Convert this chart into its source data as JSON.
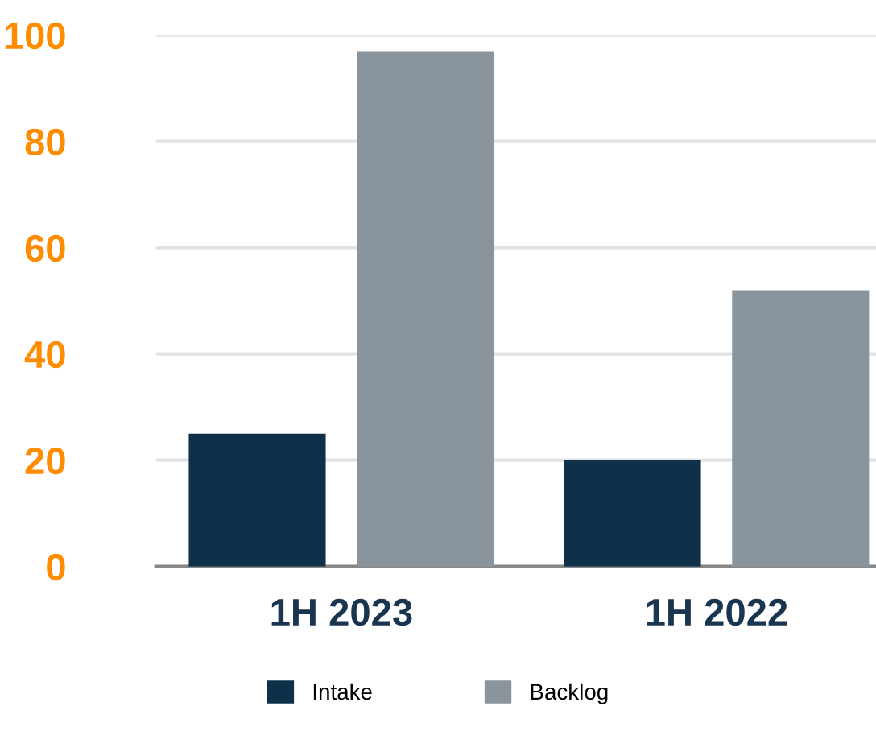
{
  "chart_data": {
    "type": "bar",
    "categories": [
      "1H 2023",
      "1H 2022"
    ],
    "series": [
      {
        "name": "Intake",
        "color": "#0e3049",
        "values": [
          25,
          20
        ]
      },
      {
        "name": "Backlog",
        "color": "#89949c",
        "values": [
          97,
          52
        ]
      }
    ],
    "ylim": [
      0,
      100
    ],
    "yticks": [
      0,
      20,
      40,
      60,
      80,
      100
    ],
    "grid": "y",
    "legend": "bottom"
  }
}
